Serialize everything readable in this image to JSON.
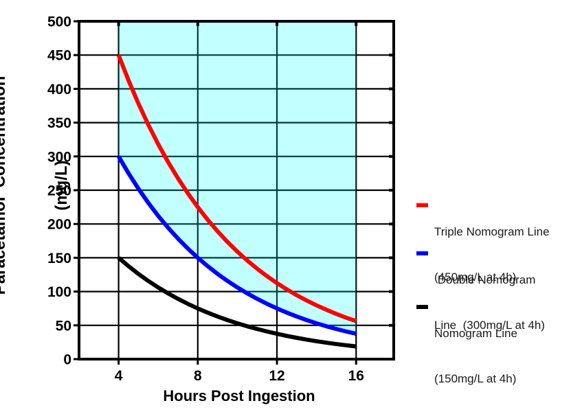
{
  "chart_data": {
    "type": "line",
    "title": "",
    "xlabel": "Hours Post Ingestion",
    "ylabel_lines": [
      "Paracetamol  Concentration",
      "(mg/L)"
    ],
    "xlim": [
      2,
      17.9
    ],
    "ylim": [
      0,
      500
    ],
    "xticks": [
      4,
      8,
      12,
      16
    ],
    "yticks": [
      0,
      50,
      100,
      150,
      200,
      250,
      300,
      350,
      400,
      450,
      500
    ],
    "grid": true,
    "legend_position": "right",
    "x": [
      4,
      4.5,
      5,
      5.5,
      6,
      6.5,
      7,
      7.5,
      8,
      8.5,
      9,
      9.5,
      10,
      10.5,
      11,
      11.5,
      12,
      12.5,
      13,
      13.5,
      14,
      14.5,
      15,
      15.5,
      16
    ],
    "series": [
      {
        "name": "Triple Nomogram Line (450mg/L at 4h)",
        "color": "#ff0000",
        "start_mg_per_L_at_4h": 450,
        "half_life_hours": 4,
        "values": [
          450,
          412.7,
          378.4,
          347,
          318.2,
          291.8,
          267.6,
          245.4,
          225,
          206.3,
          189.2,
          173.5,
          159.1,
          145.9,
          133.8,
          122.7,
          112.5,
          103.2,
          94.6,
          86.8,
          79.6,
          73,
          66.9,
          61.3,
          56.3
        ]
      },
      {
        "name": "Double Nomogram Line (300mg/L at 4h)",
        "color": "#0000ff",
        "start_mg_per_L_at_4h": 300,
        "half_life_hours": 4,
        "values": [
          300,
          275.1,
          252.3,
          231.3,
          212.1,
          194.5,
          178.4,
          163.6,
          150,
          137.6,
          126.1,
          115.7,
          106.1,
          97.3,
          89.2,
          81.8,
          75,
          68.8,
          63.1,
          57.8,
          53,
          48.6,
          44.6,
          40.9,
          37.5
        ]
      },
      {
        "name": "Nomogram Line (150mg/L at 4h)",
        "color": "#000000",
        "start_mg_per_L_at_4h": 150,
        "half_life_hours": 4,
        "values": [
          150,
          137.6,
          126.1,
          115.7,
          106.1,
          97.3,
          89.2,
          81.8,
          75,
          68.8,
          63.1,
          57.8,
          53,
          48.6,
          44.6,
          40.9,
          37.5,
          34.4,
          31.5,
          28.9,
          26.5,
          24.3,
          22.3,
          20.5,
          18.8
        ]
      }
    ],
    "shaded_region": {
      "description": "cyan zone above Double Nomogram Line, between 4h and 16h, up to 500 mg/L",
      "fill": "rgba(0,255,255,0.24)",
      "x_range": [
        4,
        16
      ],
      "y_top": 500,
      "lower_bound_series_index": 1
    }
  },
  "legend": {
    "entries": [
      {
        "color": "#ff0000",
        "line1": "Triple Nomogram Line",
        "line2": "(450mg/L at 4h)"
      },
      {
        "color": "#0000ff",
        "line1": " Double Nomogram",
        "line2": "Line  (300mg/L at 4h)"
      },
      {
        "color": "#000000",
        "line1": "Nomogram Line",
        "line2": "(150mg/L at 4h)"
      }
    ]
  }
}
